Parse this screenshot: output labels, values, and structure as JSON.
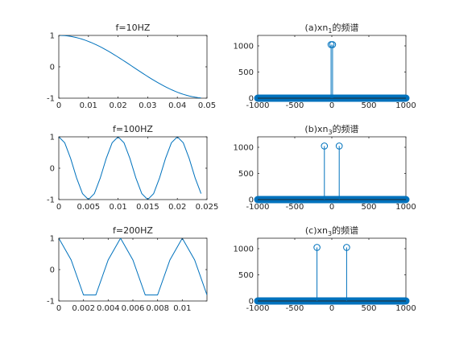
{
  "figure": {
    "background": "#ffffff",
    "line_color": "#0072bd",
    "axis_color": "#262626"
  },
  "chart_data": [
    {
      "id": "p1",
      "type": "line",
      "title": "f=10HZ",
      "xlim": [
        0,
        0.05
      ],
      "ylim": [
        -1,
        1
      ],
      "xticks": [
        0,
        0.01,
        0.02,
        0.03,
        0.04,
        0.05
      ],
      "xtick_labels": [
        "0",
        "0.01",
        "0.02",
        "0.03",
        "0.04",
        "0.05"
      ],
      "yticks": [
        -1,
        0,
        1
      ],
      "ytick_labels": [
        "-1",
        "0",
        "1"
      ],
      "series": [
        {
          "function": "cos",
          "frequency": 10,
          "x_range": [
            0,
            0.048
          ],
          "samples": 50
        }
      ]
    },
    {
      "id": "p2",
      "type": "line",
      "title": "f=100HZ",
      "xlim": [
        0,
        0.025
      ],
      "ylim": [
        -1,
        1
      ],
      "xticks": [
        0,
        0.005,
        0.01,
        0.015,
        0.02,
        0.025
      ],
      "xtick_labels": [
        "0",
        "0.005",
        "0.01",
        "0.015",
        "0.02",
        "0.025"
      ],
      "yticks": [
        -1,
        0,
        1
      ],
      "ytick_labels": [
        "-1",
        "0",
        "1"
      ],
      "series": [
        {
          "function": "cos",
          "frequency": 100,
          "x_range": [
            0,
            0.024
          ],
          "samples": 25
        }
      ]
    },
    {
      "id": "p3",
      "type": "line",
      "title": "f=200HZ",
      "xlim": [
        0,
        0.012
      ],
      "ylim": [
        -1,
        1
      ],
      "xticks": [
        0,
        0.002,
        0.004,
        0.006,
        0.008,
        0.01
      ],
      "xtick_labels": [
        "0",
        "0.002",
        "0.004",
        "0.006",
        "0.008",
        "0.01"
      ],
      "yticks": [
        -1,
        0,
        1
      ],
      "ytick_labels": [
        "-1",
        "0",
        "1"
      ],
      "series": [
        {
          "function": "cos",
          "frequency": 200,
          "x_range": [
            0,
            0.012
          ],
          "samples": 13
        }
      ]
    },
    {
      "id": "s1",
      "type": "stem",
      "title": "(a)xn",
      "title_sub": "1",
      "title_suffix": "的频谱",
      "xlim": [
        -1000,
        1000
      ],
      "ylim": [
        0,
        1200
      ],
      "xticks": [
        -1000,
        -500,
        0,
        500,
        1000
      ],
      "xtick_labels": [
        "-1000",
        "-500",
        "0",
        "500",
        "1000"
      ],
      "yticks": [
        0,
        500,
        1000
      ],
      "ytick_labels": [
        "0",
        "500",
        "1000"
      ],
      "peaks": [
        {
          "x": -10,
          "y": 1024
        },
        {
          "x": 10,
          "y": 1024
        }
      ],
      "baseline_dense_range": [
        -1000,
        1000
      ]
    },
    {
      "id": "s2",
      "type": "stem",
      "title": "(b)xn",
      "title_sub": "3",
      "title_suffix": "的频谱",
      "xlim": [
        -1000,
        1000
      ],
      "ylim": [
        0,
        1200
      ],
      "xticks": [
        -1000,
        -500,
        0,
        500,
        1000
      ],
      "xtick_labels": [
        "-1000",
        "-500",
        "0",
        "500",
        "1000"
      ],
      "yticks": [
        0,
        500,
        1000
      ],
      "ytick_labels": [
        "0",
        "500",
        "1000"
      ],
      "peaks": [
        {
          "x": -100,
          "y": 1024
        },
        {
          "x": 100,
          "y": 1024
        }
      ],
      "baseline_dense_range": [
        -1000,
        1000
      ]
    },
    {
      "id": "s3",
      "type": "stem",
      "title": "(c)xn",
      "title_sub": "3",
      "title_suffix": "的频谱",
      "xlim": [
        -1000,
        1000
      ],
      "ylim": [
        0,
        1200
      ],
      "xticks": [
        -1000,
        -500,
        0,
        500,
        1000
      ],
      "xtick_labels": [
        "-1000",
        "-500",
        "0",
        "500",
        "1000"
      ],
      "yticks": [
        0,
        500,
        1000
      ],
      "ytick_labels": [
        "0",
        "500",
        "1000"
      ],
      "peaks": [
        {
          "x": -200,
          "y": 1024
        },
        {
          "x": 200,
          "y": 1024
        }
      ],
      "baseline_dense_range": [
        -1000,
        1000
      ]
    }
  ]
}
